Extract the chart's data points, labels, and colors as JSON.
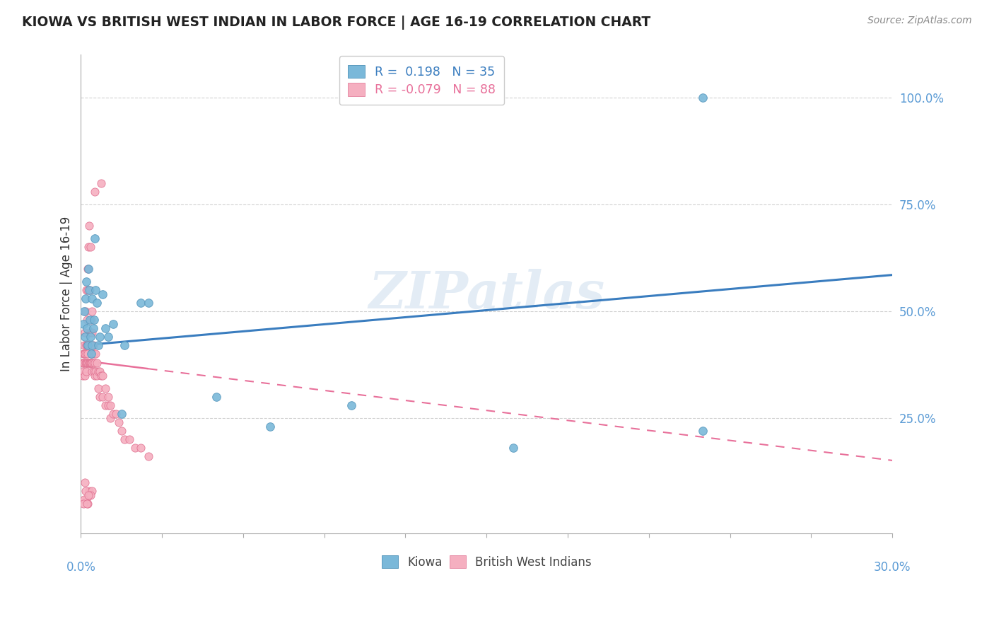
{
  "title": "KIOWA VS BRITISH WEST INDIAN IN LABOR FORCE | AGE 16-19 CORRELATION CHART",
  "source": "Source: ZipAtlas.com",
  "ylabel": "In Labor Force | Age 16-19",
  "ytick_labels": [
    "25.0%",
    "50.0%",
    "75.0%",
    "100.0%"
  ],
  "ytick_values": [
    0.25,
    0.5,
    0.75,
    1.0
  ],
  "xlim": [
    0.0,
    0.3
  ],
  "ylim": [
    -0.02,
    1.1
  ],
  "watermark": "ZIPatlas",
  "kiowa_color": "#7ab8d9",
  "kiowa_edge": "#5a9abf",
  "bwi_color": "#f5afc0",
  "bwi_edge": "#e07090",
  "trend_kiowa_color": "#3a7dbf",
  "trend_bwi_color": "#e8709a",
  "background_color": "#ffffff",
  "grid_color": "#cccccc",
  "axis_label_color": "#5b9bd5",
  "kiowa_x": [
    0.001,
    0.0012,
    0.0015,
    0.0018,
    0.002,
    0.0022,
    0.0025,
    0.0028,
    0.003,
    0.0032,
    0.0035,
    0.0038,
    0.004,
    0.0042,
    0.0045,
    0.0048,
    0.005,
    0.0055,
    0.006,
    0.0065,
    0.007,
    0.008,
    0.009,
    0.01,
    0.012,
    0.015,
    0.016,
    0.022,
    0.025,
    0.05,
    0.07,
    0.1,
    0.16,
    0.23,
    0.23
  ],
  "kiowa_y": [
    0.47,
    0.5,
    0.44,
    0.53,
    0.57,
    0.46,
    0.42,
    0.6,
    0.55,
    0.48,
    0.44,
    0.4,
    0.53,
    0.42,
    0.46,
    0.48,
    0.67,
    0.55,
    0.52,
    0.42,
    0.44,
    0.54,
    0.46,
    0.44,
    0.47,
    0.26,
    0.42,
    0.52,
    0.52,
    0.3,
    0.23,
    0.28,
    0.18,
    0.22,
    1.0
  ],
  "bwi_x": [
    0.0005,
    0.0008,
    0.001,
    0.001,
    0.001,
    0.0012,
    0.0012,
    0.0012,
    0.0015,
    0.0015,
    0.0015,
    0.0018,
    0.0018,
    0.002,
    0.002,
    0.002,
    0.002,
    0.002,
    0.0022,
    0.0022,
    0.0022,
    0.0025,
    0.0025,
    0.0025,
    0.0025,
    0.0028,
    0.0028,
    0.003,
    0.003,
    0.003,
    0.003,
    0.0032,
    0.0032,
    0.0035,
    0.0035,
    0.0035,
    0.0038,
    0.0038,
    0.004,
    0.004,
    0.004,
    0.0042,
    0.0042,
    0.0045,
    0.0045,
    0.0048,
    0.0048,
    0.005,
    0.005,
    0.0055,
    0.0055,
    0.006,
    0.006,
    0.0065,
    0.0065,
    0.007,
    0.007,
    0.0075,
    0.008,
    0.008,
    0.009,
    0.009,
    0.01,
    0.01,
    0.011,
    0.011,
    0.012,
    0.013,
    0.014,
    0.015,
    0.016,
    0.018,
    0.02,
    0.022,
    0.025,
    0.005,
    0.0075,
    0.003,
    0.002,
    0.0015,
    0.0012,
    0.0025,
    0.0018,
    0.004,
    0.001,
    0.0022,
    0.0035,
    0.0028
  ],
  "bwi_y": [
    0.38,
    0.35,
    0.4,
    0.38,
    0.36,
    0.42,
    0.38,
    0.4,
    0.45,
    0.35,
    0.4,
    0.5,
    0.38,
    0.55,
    0.42,
    0.38,
    0.36,
    0.4,
    0.48,
    0.38,
    0.42,
    0.6,
    0.55,
    0.4,
    0.38,
    0.65,
    0.42,
    0.7,
    0.38,
    0.42,
    0.38,
    0.55,
    0.38,
    0.65,
    0.45,
    0.38,
    0.48,
    0.38,
    0.5,
    0.4,
    0.36,
    0.45,
    0.38,
    0.42,
    0.38,
    0.4,
    0.36,
    0.38,
    0.35,
    0.4,
    0.36,
    0.38,
    0.35,
    0.36,
    0.32,
    0.36,
    0.3,
    0.35,
    0.35,
    0.3,
    0.32,
    0.28,
    0.3,
    0.28,
    0.28,
    0.25,
    0.26,
    0.26,
    0.24,
    0.22,
    0.2,
    0.2,
    0.18,
    0.18,
    0.16,
    0.78,
    0.8,
    0.08,
    0.06,
    0.1,
    0.06,
    0.05,
    0.08,
    0.08,
    0.05,
    0.05,
    0.07,
    0.07
  ]
}
